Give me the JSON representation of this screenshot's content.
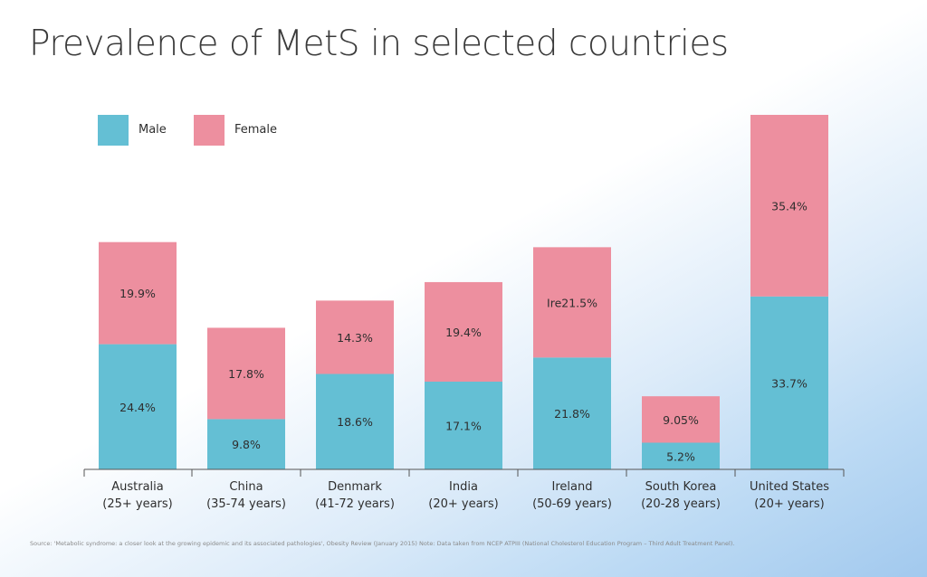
{
  "chart_data": {
    "type": "bar",
    "stacked": true,
    "title": "Prevalence of MetS in selected countries",
    "categories": [
      [
        "Australia",
        "(25+ years)"
      ],
      [
        "China",
        "(35-74 years)"
      ],
      [
        "Denmark",
        "(41-72 years)"
      ],
      [
        "India",
        "(20+ years)"
      ],
      [
        "Ireland",
        "(50-69 years)"
      ],
      [
        "South Korea",
        "(20-28 years)"
      ],
      [
        "United States",
        "(20+ years)"
      ]
    ],
    "series": [
      {
        "name": "Male",
        "color": "#64bfd4",
        "values": [
          24.4,
          9.8,
          18.6,
          17.1,
          21.8,
          5.2,
          33.7
        ],
        "labels": [
          "24.4%",
          "9.8%",
          "18.6%",
          "17.1%",
          "21.8%",
          "5.2%",
          "33.7%"
        ]
      },
      {
        "name": "Female",
        "color": "#ed8f9f",
        "values": [
          19.9,
          17.8,
          14.3,
          19.4,
          21.5,
          9.05,
          35.4
        ],
        "labels": [
          "19.9%",
          "17.8%",
          "14.3%",
          "19.4%",
          "Ire21.5%",
          "9.05%",
          "35.4%"
        ]
      }
    ],
    "legend": "top-left",
    "grid": false,
    "ylim": [
      0,
      69.1
    ]
  },
  "source_note": "Source: 'Metabolic syndrome: a closer look at the growing epidemic and its associated pathologies', Obesity Review (January 2015) Note: Data taken from NCEP ATPIII (National Cholesterol Education Program – Third Adult Treatment Panel)."
}
